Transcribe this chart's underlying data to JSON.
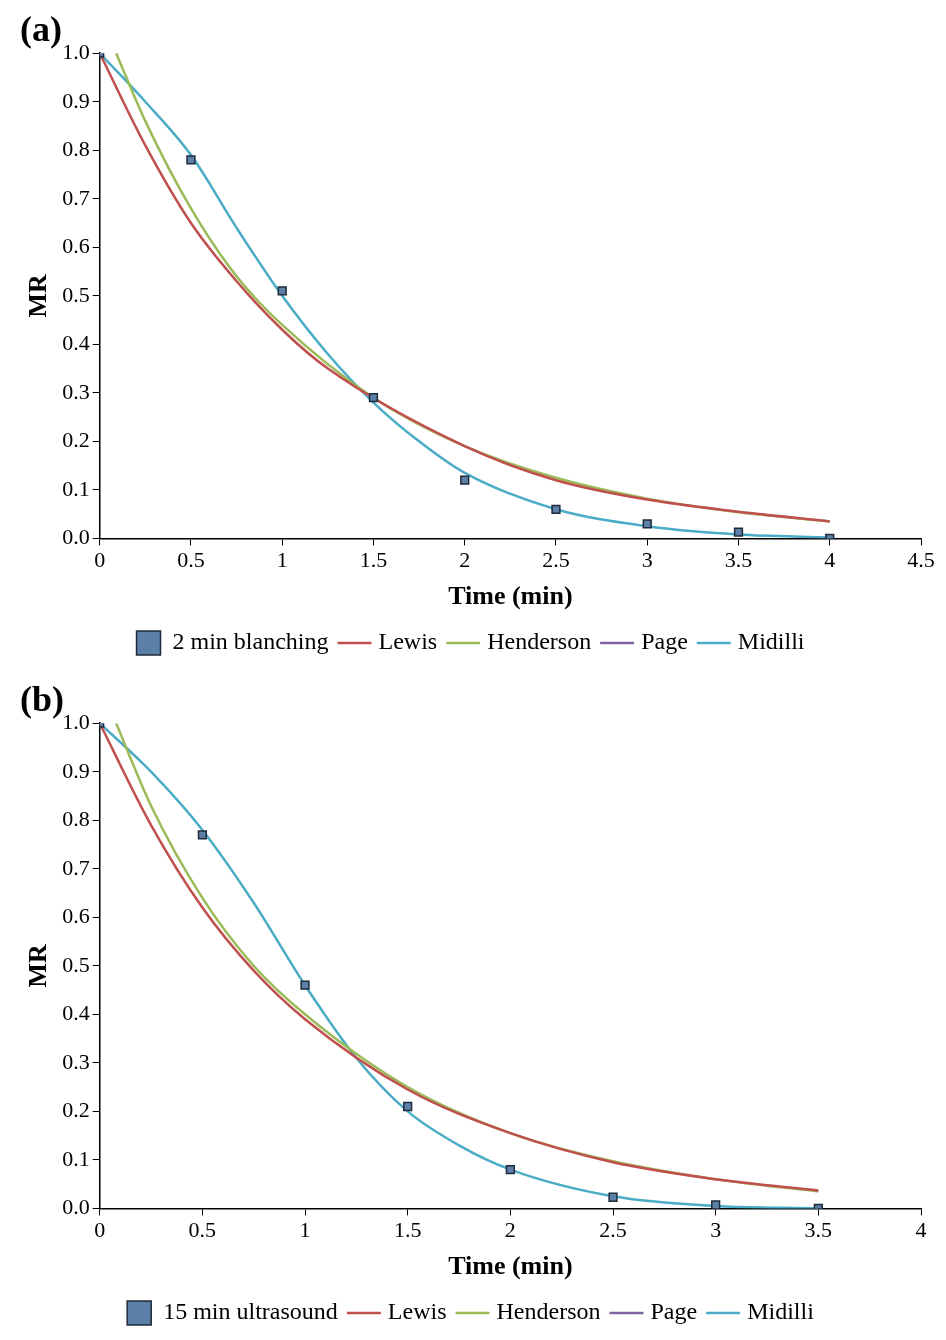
{
  "chart_data": [
    {
      "type": "line",
      "title": "(a)",
      "xlabel": "Time (min)",
      "ylabel": "MR",
      "xlim": [
        0,
        4.5
      ],
      "xticks": [
        0,
        0.5,
        1,
        1.5,
        2,
        2.5,
        3,
        3.5,
        4,
        4.5
      ],
      "ylim": [
        0,
        1
      ],
      "yticks": [
        {
          "value": 0,
          "label": "0.0"
        },
        {
          "value": 0.1,
          "label": "0.1"
        },
        {
          "value": 0.2,
          "label": "0.2"
        },
        {
          "value": 0.3,
          "label": "0.3"
        },
        {
          "value": 0.4,
          "label": "0.4"
        },
        {
          "value": 0.5,
          "label": "0.5"
        },
        {
          "value": 0.6,
          "label": "0.6"
        },
        {
          "value": 0.7,
          "label": "0.7"
        },
        {
          "value": 0.8,
          "label": "0.8"
        },
        {
          "value": 0.9,
          "label": "0.9"
        },
        {
          "value": 1,
          "label": "1.0"
        }
      ],
      "grid": false,
      "legend": "bottom",
      "series": [
        {
          "name": "2 min blanching",
          "type": "scatter",
          "marker": "square",
          "color": "#5b7fa6",
          "x": [
            0,
            0.5,
            1,
            1.5,
            2,
            2.5,
            3,
            3.5,
            4
          ],
          "values": [
            1,
            0.78,
            0.51,
            0.29,
            0.12,
            0.06,
            0.03,
            0.013,
            0
          ]
        },
        {
          "name": "Lewis",
          "color": "#c0504d",
          "x": [
            0,
            0.25,
            0.5,
            0.75,
            1,
            1.25,
            2,
            2.5,
            3,
            3.5,
            4
          ],
          "values": [
            1,
            0.81,
            0.65,
            0.53,
            0.43,
            0.35,
            0.19,
            0.12,
            0.08,
            0.055,
            0.035
          ]
        },
        {
          "name": "Henderson",
          "color": "#9bbb59",
          "x": [
            0.09,
            0.25,
            0.5,
            0.75,
            1,
            1.5,
            2,
            2.5,
            3,
            3.5,
            4
          ],
          "values": [
            1,
            0.86,
            0.68,
            0.54,
            0.44,
            0.29,
            0.19,
            0.125,
            0.082,
            0.054,
            0.035
          ]
        },
        {
          "name": "Page",
          "color": "#8064a2"
        },
        {
          "name": "Midilli",
          "color": "#4bacc6",
          "x": [
            0,
            0.25,
            0.5,
            0.75,
            1,
            1.25,
            1.5,
            1.75,
            2,
            2.5,
            3,
            3.5,
            4
          ],
          "values": [
            1,
            0.9,
            0.79,
            0.64,
            0.5,
            0.38,
            0.28,
            0.2,
            0.135,
            0.06,
            0.025,
            0.008,
            0.002
          ]
        }
      ]
    },
    {
      "type": "line",
      "title": "(b)",
      "xlabel": "Time (min)",
      "ylabel": "MR",
      "xlim": [
        0,
        4
      ],
      "xticks": [
        0,
        0.5,
        1,
        1.5,
        2,
        2.5,
        3,
        3.5,
        4
      ],
      "ylim": [
        0,
        1
      ],
      "yticks": [
        {
          "value": 0,
          "label": "0.0"
        },
        {
          "value": 0.1,
          "label": "0.1"
        },
        {
          "value": 0.2,
          "label": "0.2"
        },
        {
          "value": 0.3,
          "label": "0.3"
        },
        {
          "value": 0.4,
          "label": "0.4"
        },
        {
          "value": 0.5,
          "label": "0.5"
        },
        {
          "value": 0.6,
          "label": "0.6"
        },
        {
          "value": 0.7,
          "label": "0.7"
        },
        {
          "value": 0.8,
          "label": "0.8"
        },
        {
          "value": 0.9,
          "label": "0.9"
        },
        {
          "value": 1,
          "label": "1.0"
        }
      ],
      "grid": false,
      "legend": "bottom",
      "series": [
        {
          "name": "15 min ultrasound",
          "type": "scatter",
          "marker": "square",
          "color": "#5b7fa6",
          "x": [
            0,
            0.5,
            1,
            1.5,
            2,
            2.5,
            3,
            3.5
          ],
          "values": [
            1,
            0.77,
            0.46,
            0.21,
            0.08,
            0.023,
            0.007,
            0
          ]
        },
        {
          "name": "Lewis",
          "color": "#c0504d",
          "x": [
            0,
            0.25,
            0.5,
            0.75,
            1,
            1.5,
            2,
            2.5,
            3,
            3.5
          ],
          "values": [
            1,
            0.79,
            0.62,
            0.49,
            0.39,
            0.245,
            0.155,
            0.095,
            0.06,
            0.037
          ]
        },
        {
          "name": "Henderson",
          "color": "#9bbb59",
          "x": [
            0.08,
            0.25,
            0.5,
            0.75,
            1,
            1.5,
            2,
            2.5,
            3,
            3.5
          ],
          "values": [
            1,
            0.83,
            0.64,
            0.5,
            0.4,
            0.25,
            0.155,
            0.097,
            0.06,
            0.035
          ]
        },
        {
          "name": "Page",
          "color": "#8064a2"
        },
        {
          "name": "Midilli",
          "color": "#4bacc6",
          "x": [
            0,
            0.25,
            0.5,
            0.75,
            1,
            1.25,
            1.5,
            1.75,
            2,
            2.5,
            3,
            3.5
          ],
          "values": [
            1,
            0.9,
            0.78,
            0.63,
            0.46,
            0.31,
            0.2,
            0.13,
            0.08,
            0.025,
            0.005,
            0
          ]
        }
      ]
    }
  ]
}
